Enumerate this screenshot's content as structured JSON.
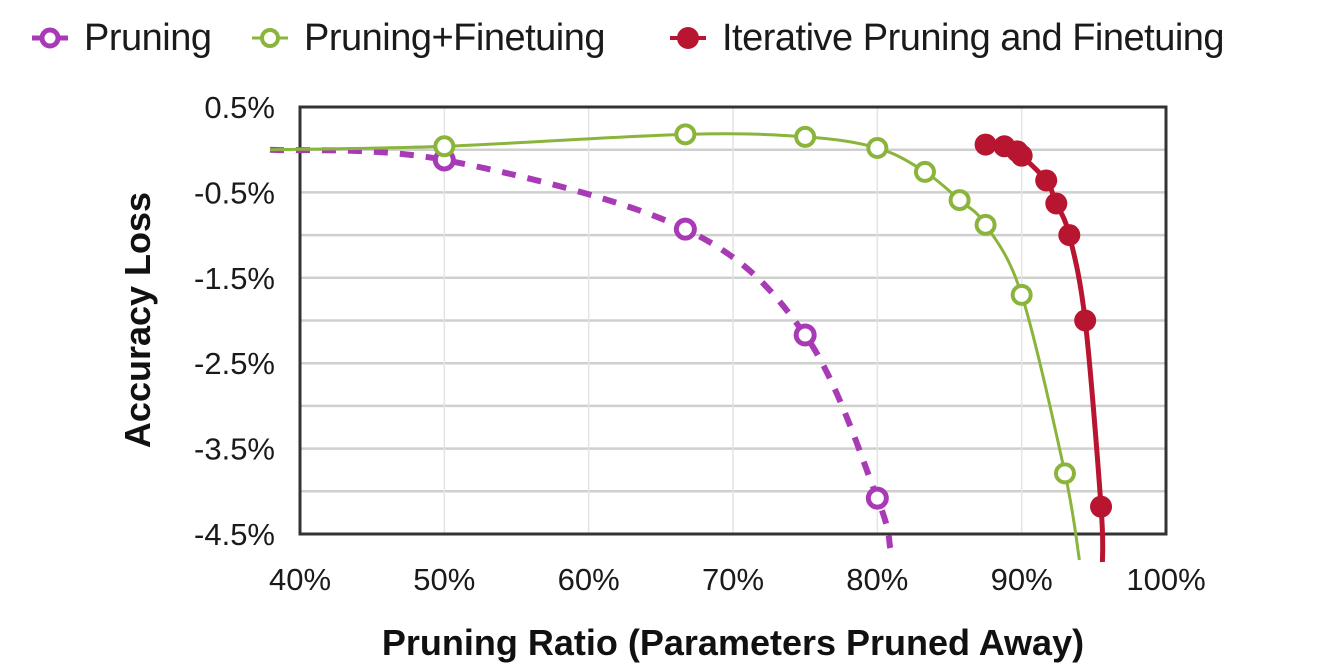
{
  "legend": [
    {
      "label": "Pruning",
      "color": "#a83bb5",
      "marker": "open-circle",
      "line": "dashed"
    },
    {
      "label": "Pruning+Finetuing",
      "color": "#8bb43c",
      "marker": "open-circle",
      "line": "solid"
    },
    {
      "label": "Iterative Pruning and Finetuing",
      "color": "#b81530",
      "marker": "filled-circle",
      "line": "solid"
    }
  ],
  "axes": {
    "xlabel": "Pruning Ratio (Parameters Pruned Away)",
    "ylabel": "Accuracy Loss",
    "xticks": [
      "40%",
      "50%",
      "60%",
      "70%",
      "80%",
      "90%",
      "100%"
    ],
    "yticks": [
      "0.5%",
      "-0.5%",
      "-1.5%",
      "-2.5%",
      "-3.5%",
      "-4.5%"
    ]
  },
  "chart_data": {
    "type": "line",
    "title": "",
    "xlabel": "Pruning Ratio (Parameters Pruned Away)",
    "ylabel": "Accuracy Loss",
    "xlim": [
      40,
      100
    ],
    "ylim": [
      -4.5,
      0.5
    ],
    "x_unit": "%",
    "y_unit": "%",
    "grid": true,
    "legend_position": "top",
    "xticks": [
      40,
      50,
      60,
      70,
      80,
      90,
      100
    ],
    "yticks": [
      0.5,
      -0.5,
      -1.5,
      -2.5,
      -3.5,
      -4.5
    ],
    "series": [
      {
        "name": "Pruning",
        "color": "#a83bb5",
        "style": "dashed",
        "marker": "open-circle",
        "x": [
          50,
          66.7,
          75,
          80
        ],
        "y": [
          -0.12,
          -0.93,
          -2.17,
          -4.08
        ]
      },
      {
        "name": "Pruning+Finetuing",
        "color": "#8bb43c",
        "style": "solid",
        "marker": "open-circle",
        "x": [
          50,
          66.7,
          75,
          80,
          83.3,
          85.7,
          87.5,
          90,
          93
        ],
        "y": [
          0.04,
          0.18,
          0.15,
          0.02,
          -0.26,
          -0.59,
          -0.88,
          -1.7,
          -3.79
        ]
      },
      {
        "name": "Iterative Pruning and Finetuing",
        "color": "#b81530",
        "style": "solid",
        "marker": "filled-circle",
        "x": [
          87.5,
          88.8,
          89.7,
          90,
          91.7,
          92.4,
          93.3,
          94.4,
          95.5
        ],
        "y": [
          0.06,
          0.04,
          -0.02,
          -0.07,
          -0.36,
          -0.63,
          -1.0,
          -2.0,
          -4.18
        ]
      }
    ]
  }
}
